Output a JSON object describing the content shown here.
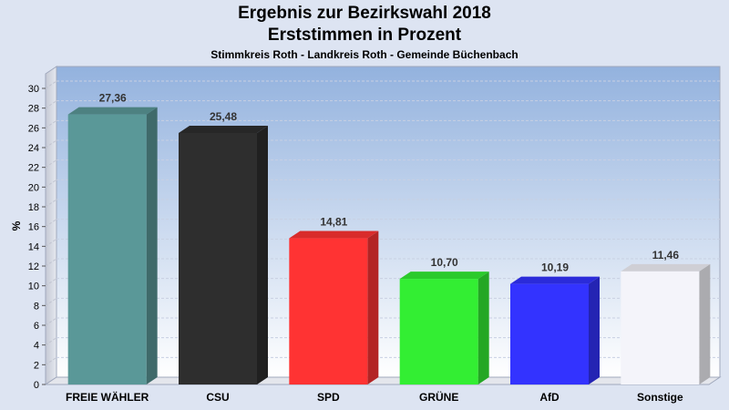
{
  "chart_data": {
    "type": "bar",
    "title": "Ergebnis zur Bezirkswahl 2018",
    "subtitle": "Erststimmen in Prozent",
    "subtitle2": "Stimmkreis Roth - Landkreis Roth - Gemeinde Büchenbach",
    "ylabel": "%",
    "ylim": [
      0,
      30
    ],
    "yticks": [
      0,
      2,
      4,
      6,
      8,
      10,
      12,
      14,
      16,
      18,
      20,
      22,
      24,
      26,
      28,
      30
    ],
    "categories": [
      "FREIE WÄHLER",
      "CSU",
      "SPD",
      "GRÜNE",
      "AfD",
      "Sonstige"
    ],
    "values": [
      27.36,
      25.48,
      14.81,
      10.7,
      10.19,
      11.46
    ],
    "value_labels": [
      "27,36",
      "25,48",
      "14,81",
      "10,70",
      "10,19",
      "11,46"
    ],
    "colors": [
      "#5a9898",
      "#2e2e2e",
      "#ff3333",
      "#33ee33",
      "#3333ff",
      "#f4f4fa"
    ],
    "grid": true,
    "legend": "none"
  }
}
